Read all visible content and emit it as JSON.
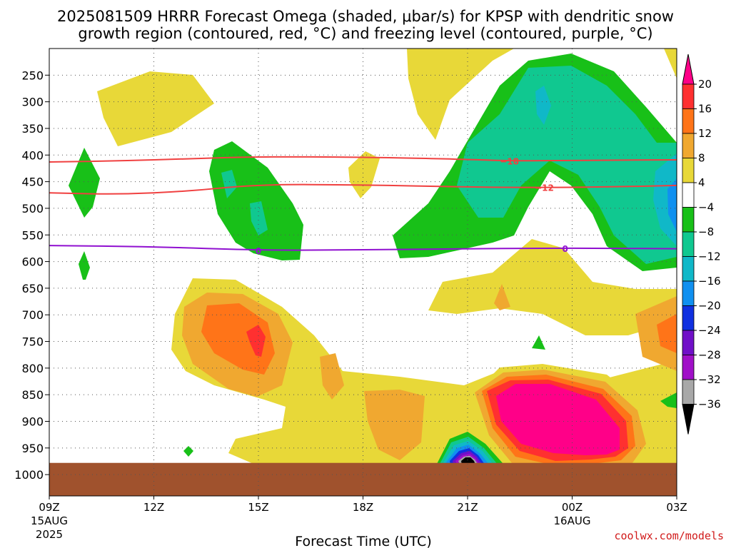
{
  "chart_data": {
    "type": "heatmap",
    "title_line1": "2025081509 HRRR Forecast Omega (shaded, μbar/s) for KPSP with dendritic snow",
    "title_line2": "growth region (contoured, red, °C) and freezing level (contoured, purple, °C)",
    "xlabel": "Forecast Time (UTC)",
    "credit": "coolwx.com/models",
    "x_ticks": [
      {
        "hour": 0,
        "label": "09Z",
        "sub1": "15AUG",
        "sub2": "2025"
      },
      {
        "hour": 3,
        "label": "12Z",
        "sub1": "",
        "sub2": ""
      },
      {
        "hour": 6,
        "label": "15Z",
        "sub1": "",
        "sub2": ""
      },
      {
        "hour": 9,
        "label": "18Z",
        "sub1": "",
        "sub2": ""
      },
      {
        "hour": 12,
        "label": "21Z",
        "sub1": "",
        "sub2": ""
      },
      {
        "hour": 15,
        "label": "00Z",
        "sub1": "16AUG",
        "sub2": ""
      },
      {
        "hour": 18,
        "label": "03Z",
        "sub1": "",
        "sub2": ""
      }
    ],
    "y_ticks": [
      250,
      300,
      350,
      400,
      450,
      500,
      550,
      600,
      650,
      700,
      750,
      800,
      850,
      900,
      950,
      1000
    ],
    "ylim": [
      200,
      1040
    ],
    "xlim": [
      0,
      18
    ],
    "surface_pressure": 978,
    "colorbar": {
      "ticks": [
        "20",
        "16",
        "12",
        "8",
        "4",
        "−4",
        "−8",
        "−12",
        "−16",
        "−20",
        "−24",
        "−28",
        "−32",
        "−36"
      ],
      "colors": [
        "#ff0088",
        "#ff3030",
        "#ff7418",
        "#f0a830",
        "#e8d838",
        "#ffffff",
        "#18c018",
        "#10c890",
        "#10b8c8",
        "#1090f0",
        "#1030e0",
        "#7010c8",
        "#a010c8",
        "#a8a8a8",
        "#000000"
      ]
    },
    "contours": [
      {
        "name": "-18",
        "color": "#f04040",
        "label": "−18",
        "points": [
          [
            0,
            413
          ],
          [
            2,
            411
          ],
          [
            4,
            407
          ],
          [
            6,
            403
          ],
          [
            9,
            404
          ],
          [
            12,
            408
          ],
          [
            13.2,
            411
          ],
          [
            15,
            410
          ],
          [
            18,
            409
          ]
        ]
      },
      {
        "name": "-12",
        "color": "#f04040",
        "label": "−12",
        "points": [
          [
            0,
            471
          ],
          [
            2,
            474
          ],
          [
            4,
            468
          ],
          [
            6,
            455
          ],
          [
            9,
            456
          ],
          [
            12,
            460
          ],
          [
            14,
            461
          ],
          [
            16,
            460
          ],
          [
            18,
            457
          ]
        ]
      },
      {
        "name": "0",
        "color": "#9010d0",
        "label": "0",
        "points": [
          [
            0,
            570
          ],
          [
            3,
            572
          ],
          [
            6,
            579
          ],
          [
            9,
            578
          ],
          [
            12,
            576
          ],
          [
            14,
            575
          ],
          [
            16,
            575
          ],
          [
            18,
            576
          ]
        ]
      }
    ]
  }
}
